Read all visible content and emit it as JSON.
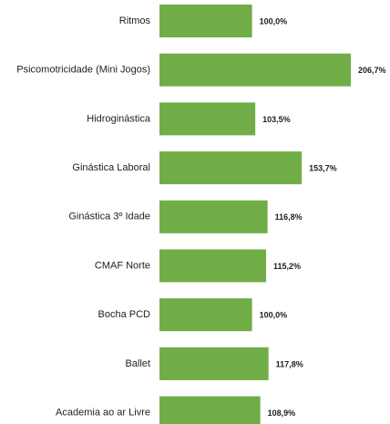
{
  "chart_data": {
    "type": "hbar",
    "categories": [
      "Ritmos",
      "Psicomotricidade (Mini Jogos)",
      "Hidroginástica",
      "Ginástica Laboral",
      "Ginástica 3º Idade",
      "CMAF Norte",
      "Bocha PCD",
      "Ballet",
      "Academia ao ar Livre"
    ],
    "values": [
      100.0,
      206.7,
      103.5,
      153.7,
      116.8,
      115.2,
      100.0,
      117.8,
      108.9
    ],
    "value_labels": [
      "100,0%",
      "206,7%",
      "103,5%",
      "153,7%",
      "116,8%",
      "115,2%",
      "100,0%",
      "117,8%",
      "108,9%"
    ],
    "color": "#70ad47"
  }
}
